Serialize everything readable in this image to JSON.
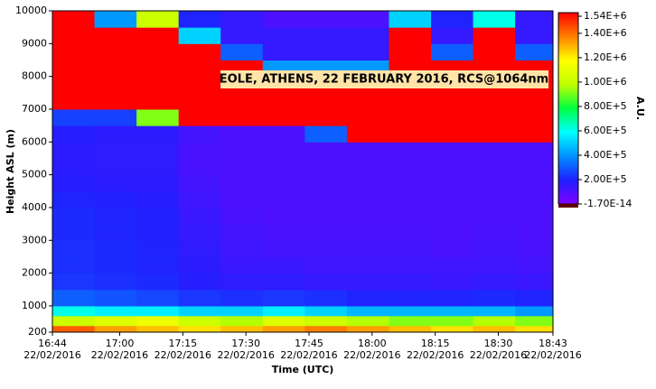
{
  "chart_data": {
    "type": "heatmap",
    "annotation": "EOLE, ATHENS, 22 FEBRUARY 2016, RCS@1064nm",
    "x_label": "Time (UTC)",
    "y_label": "Height ASL (m)",
    "colorbar_label": "A.U.",
    "xlim": [
      1004,
      1123
    ],
    "xticks": [
      {
        "value": 1004,
        "label": "16:44",
        "date": "22/02/2016"
      },
      {
        "value": 1020,
        "label": "17:00",
        "date": "22/02/2016"
      },
      {
        "value": 1035,
        "label": "17:15",
        "date": "22/02/2016"
      },
      {
        "value": 1050,
        "label": "17:30",
        "date": "22/02/2016"
      },
      {
        "value": 1065,
        "label": "17:45",
        "date": "22/02/2016"
      },
      {
        "value": 1080,
        "label": "18:00",
        "date": "22/02/2016"
      },
      {
        "value": 1095,
        "label": "18:15",
        "date": "22/02/2016"
      },
      {
        "value": 1110,
        "label": "18:30",
        "date": "22/02/2016"
      },
      {
        "value": 1123,
        "label": "18:43",
        "date": "22/02/2016"
      }
    ],
    "ylim": [
      200,
      10000
    ],
    "yticks": [
      200,
      1000,
      2000,
      3000,
      4000,
      5000,
      6000,
      7000,
      8000,
      9000,
      10000
    ],
    "xbins": [
      1004,
      1014,
      1024,
      1034,
      1044,
      1054,
      1064,
      1074,
      1084,
      1094,
      1104,
      1114,
      1123
    ],
    "ybins": [
      200,
      400,
      700,
      1000,
      1500,
      2000,
      2500,
      3000,
      3500,
      4000,
      4500,
      5000,
      5500,
      6000,
      6500,
      7000,
      7500,
      8000,
      8500,
      9000,
      9500,
      10000
    ],
    "values": [
      [
        1400000,
        1300000,
        1250000,
        1200000,
        1250000,
        1300000,
        1350000,
        1300000,
        1250000,
        1200000,
        1250000,
        1200000
      ],
      [
        1000000,
        1050000,
        1100000,
        1000000,
        950000,
        1050000,
        1000000,
        950000,
        900000,
        900000,
        950000,
        900000
      ],
      [
        600000,
        550000,
        550000,
        500000,
        500000,
        550000,
        500000,
        450000,
        450000,
        450000,
        450000,
        400000
      ],
      [
        300000,
        280000,
        260000,
        230000,
        220000,
        230000,
        220000,
        200000,
        200000,
        200000,
        210000,
        200000
      ],
      [
        230000,
        220000,
        210000,
        180000,
        160000,
        160000,
        150000,
        150000,
        150000,
        140000,
        150000,
        140000
      ],
      [
        220000,
        210000,
        200000,
        170000,
        140000,
        140000,
        130000,
        130000,
        130000,
        130000,
        130000,
        120000
      ],
      [
        220000,
        210000,
        200000,
        160000,
        130000,
        120000,
        120000,
        120000,
        120000,
        110000,
        120000,
        110000
      ],
      [
        210000,
        200000,
        190000,
        150000,
        120000,
        110000,
        110000,
        110000,
        110000,
        100000,
        110000,
        100000
      ],
      [
        210000,
        200000,
        190000,
        140000,
        110000,
        100000,
        100000,
        100000,
        100000,
        100000,
        100000,
        100000
      ],
      [
        200000,
        190000,
        180000,
        130000,
        100000,
        100000,
        100000,
        100000,
        100000,
        100000,
        100000,
        100000
      ],
      [
        180000,
        170000,
        170000,
        120000,
        100000,
        100000,
        100000,
        100000,
        100000,
        100000,
        100000,
        100000
      ],
      [
        170000,
        160000,
        160000,
        110000,
        100000,
        100000,
        100000,
        100000,
        100000,
        100000,
        100000,
        100000
      ],
      [
        170000,
        160000,
        160000,
        110000,
        100000,
        100000,
        100000,
        100000,
        100000,
        100000,
        100000,
        100000
      ],
      [
        180000,
        170000,
        170000,
        120000,
        100000,
        100000,
        300000,
        1540000,
        1540000,
        1540000,
        1540000,
        1540000
      ],
      [
        250000,
        250000,
        900000,
        1540000,
        1540000,
        1540000,
        1540000,
        1540000,
        1540000,
        1540000,
        1540000,
        1540000
      ],
      [
        1540000,
        1540000,
        1540000,
        1540000,
        1540000,
        1540000,
        1540000,
        1540000,
        1540000,
        1540000,
        1540000,
        1540000
      ],
      [
        1540000,
        1540000,
        1540000,
        1540000,
        1540000,
        1540000,
        1540000,
        1540000,
        1540000,
        1540000,
        1540000,
        1540000
      ],
      [
        1540000,
        1540000,
        1540000,
        1540000,
        1540000,
        400000,
        400000,
        400000,
        1540000,
        1540000,
        1540000,
        1540000
      ],
      [
        1540000,
        1540000,
        1540000,
        1540000,
        300000,
        150000,
        150000,
        150000,
        1540000,
        300000,
        1540000,
        300000
      ],
      [
        1540000,
        1540000,
        1540000,
        500000,
        150000,
        150000,
        150000,
        150000,
        1540000,
        150000,
        1540000,
        150000
      ],
      [
        1540000,
        400000,
        1000000,
        200000,
        150000,
        100000,
        100000,
        100000,
        500000,
        200000,
        600000,
        150000
      ]
    ],
    "zlim": [
      -1.7e-14,
      1540000
    ],
    "zticks": [
      {
        "value": -1.7e-14,
        "label": "-1.70E-14"
      },
      {
        "value": 200000,
        "label": "2.00E+5"
      },
      {
        "value": 400000,
        "label": "4.00E+5"
      },
      {
        "value": 600000,
        "label": "6.00E+5"
      },
      {
        "value": 800000,
        "label": "8.00E+5"
      },
      {
        "value": 1000000,
        "label": "1.00E+6"
      },
      {
        "value": 1200000,
        "label": "1.20E+6"
      },
      {
        "value": 1400000,
        "label": "1.40E+6"
      },
      {
        "value": 1540000,
        "label": "1.54E+6"
      }
    ],
    "colorscale": [
      "#7f00ff",
      "#2020ff",
      "#0090ff",
      "#00ffff",
      "#00ff40",
      "#c0ff00",
      "#ffff00",
      "#ff8000",
      "#ff0000"
    ]
  }
}
